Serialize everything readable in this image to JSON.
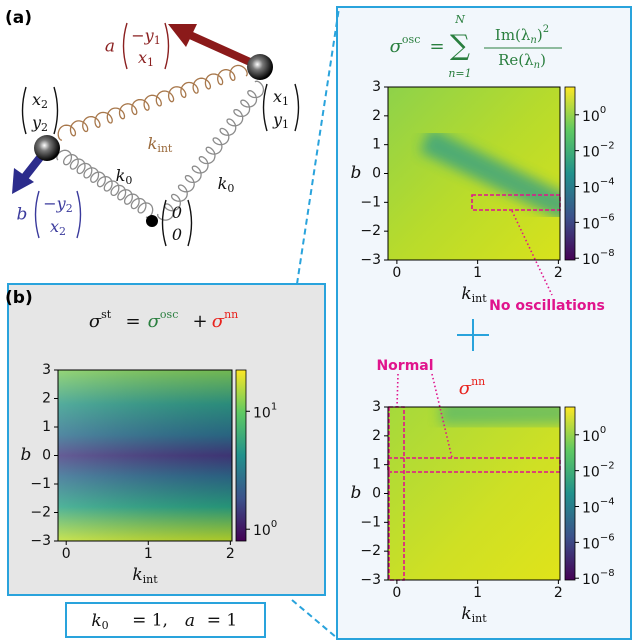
{
  "panel_a": {
    "label": "(a)",
    "force_1": {
      "coefficient": "a",
      "top": {
        "name": "−y",
        "index": "1"
      },
      "bottom": {
        "name": "x",
        "index": "1"
      }
    },
    "force_2": {
      "coefficient": "b",
      "top": {
        "name": "−y",
        "index": "2"
      },
      "bottom": {
        "name": "x",
        "index": "2"
      }
    },
    "position_1": {
      "top": {
        "name": "x",
        "index": "1"
      },
      "bottom": {
        "name": "y",
        "index": "1"
      }
    },
    "position_2": {
      "top": {
        "name": "x",
        "index": "2"
      },
      "bottom": {
        "name": "y",
        "index": "2"
      }
    },
    "origin": {
      "top": {
        "name": "0"
      },
      "bottom": {
        "name": "0"
      }
    },
    "coupling_spring": {
      "name": "k",
      "index": "int"
    },
    "anchor_springs": [
      {
        "name": "k",
        "index": "0"
      },
      {
        "name": "k",
        "index": "0"
      }
    ]
  },
  "panel_b": {
    "label": "(b)",
    "formula": {
      "lhs": {
        "name": "σ",
        "sup": "st"
      },
      "equals": "=",
      "term_1": {
        "name": "σ",
        "sup": "osc"
      },
      "plus": "+",
      "term_2": {
        "name": "σ",
        "sup": "nn"
      }
    },
    "plot": {
      "xlabel": {
        "name": "k",
        "index": "int"
      },
      "ylabel": "b",
      "xlim": [
        -0.1,
        2.02
      ],
      "ylim": [
        -3,
        3
      ],
      "xticks": [
        0,
        1,
        2
      ],
      "yticks": [
        3,
        2,
        1,
        0,
        {
          "value": -1,
          "label": "−1"
        },
        {
          "value": -2,
          "label": "−2"
        },
        {
          "value": -3,
          "label": "−3"
        }
      ],
      "colorbar": {
        "log": true,
        "lim": [
          -0.1,
          1.35
        ],
        "ticks": [
          {
            "value": 1,
            "label": "10",
            "exponent": "1"
          },
          {
            "value": 0,
            "label": "10",
            "exponent": "0"
          }
        ]
      }
    },
    "parameters": {
      "k": {
        "name": "k",
        "index": "0"
      },
      "k_value": "= 1,",
      "a": {
        "name": "a"
      },
      "a_value": "= 1"
    }
  },
  "panel_right": {
    "formula": {
      "lhs": {
        "name": "σ",
        "sup": "osc"
      },
      "equals": "=",
      "sum": "∑",
      "sum_lower": "n=1",
      "sum_upper": "N",
      "numerator": {
        "pre": "Im(λ",
        "index": "n",
        "post": ")",
        "power": "2"
      },
      "denominator": {
        "pre": "Re(λ",
        "index": "n",
        "post": ")"
      }
    },
    "plot_osc": {
      "xlabel": {
        "name": "k",
        "index": "int"
      },
      "ylabel": "b",
      "xlim": [
        -0.11,
        2.02
      ],
      "ylim": [
        -3,
        3
      ],
      "xticks": [
        0,
        1,
        2
      ],
      "yticks": [
        3,
        2,
        1,
        0,
        {
          "value": -1,
          "label": "−1"
        },
        {
          "value": -2,
          "label": "−2"
        },
        {
          "value": -3,
          "label": "−3"
        }
      ],
      "colorbar": {
        "log": true,
        "lim": [
          -8.1,
          1.55
        ],
        "ticks": [
          {
            "value": 0,
            "label": "10",
            "exponent": "0"
          },
          {
            "value": -2,
            "label": "10",
            "exponent": "−2"
          },
          {
            "value": -4,
            "label": "10",
            "exponent": "−4"
          },
          {
            "value": -6,
            "label": "10",
            "exponent": "−6"
          },
          {
            "value": -8,
            "label": "10",
            "exponent": "−8"
          }
        ]
      }
    },
    "annotation_osc": "No oscillations",
    "nn_title": {
      "name": "σ",
      "sup": "nn"
    },
    "annotation_nn": "Normal",
    "plot_nn": {
      "xlabel": {
        "name": "k",
        "index": "int"
      },
      "ylabel": "b",
      "xlim": [
        -0.11,
        2.02
      ],
      "ylim": [
        -3,
        3
      ],
      "xticks": [
        0,
        1,
        2
      ],
      "yticks": [
        3,
        2,
        1,
        0,
        {
          "value": -1,
          "label": "−1"
        },
        {
          "value": -2,
          "label": "−2"
        },
        {
          "value": -3,
          "label": "−3"
        }
      ],
      "colorbar": {
        "log": true,
        "lim": [
          -8.1,
          1.55
        ],
        "ticks": [
          {
            "value": 0,
            "label": "10",
            "exponent": "0"
          },
          {
            "value": -2,
            "label": "10",
            "exponent": "−2"
          },
          {
            "value": -4,
            "label": "10",
            "exponent": "−4"
          },
          {
            "value": -6,
            "label": "10",
            "exponent": "−6"
          },
          {
            "value": -8,
            "label": "10",
            "exponent": "−8"
          }
        ]
      }
    }
  }
}
